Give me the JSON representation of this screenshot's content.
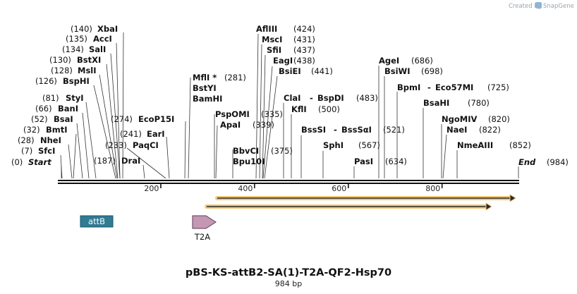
{
  "header": {
    "created_by": "Created by",
    "brand": "SnapGene"
  },
  "plasmid": {
    "name": "pBS-KS-attB2-SA(1)-T2A-QF2-Hsp70",
    "length": 984,
    "length_label": "984 bp"
  },
  "scale": {
    "ticks": [
      200,
      400,
      600,
      800
    ]
  },
  "sites": [
    {
      "label": "(0)",
      "name": "Start",
      "italic": true,
      "site": 0,
      "text_side": "left",
      "line": [
        87,
        253,
        87,
        236
      ]
    },
    {
      "label": "(7)",
      "name": "SfcI",
      "site": 7,
      "text_side": "left",
      "line": [
        88,
        253,
        86,
        220
      ]
    },
    {
      "label": "(28)",
      "name": "NheI",
      "site": 28,
      "text_side": "left",
      "line": [
        102,
        253,
        97,
        205
      ]
    },
    {
      "label": "(32)",
      "name": "BmtI",
      "site": 32,
      "text_side": "left",
      "line": [
        104,
        253,
        108,
        190
      ]
    },
    {
      "label": "(52)",
      "name": "BsaI",
      "site": 52,
      "text_side": "left",
      "line": [
        117,
        253,
        109,
        175
      ]
    },
    {
      "label": "(66)",
      "name": "BanI",
      "site": 66,
      "text_side": "left",
      "line": [
        126,
        253,
        117,
        160
      ]
    },
    {
      "label": "(81)",
      "name": "StyI",
      "site": 81,
      "text_side": "left",
      "line": [
        136,
        253,
        122,
        145
      ]
    },
    {
      "label": "(126)",
      "name": "BspHI",
      "site": 126,
      "text_side": "left",
      "line": [
        164,
        253,
        133,
        121
      ]
    },
    {
      "label": "(128)",
      "name": "MslI",
      "site": 128,
      "text_side": "left",
      "line": [
        166,
        253,
        141,
        106
      ]
    },
    {
      "label": "(130)",
      "name": "BstXI",
      "site": 130,
      "text_side": "left",
      "line": [
        167,
        253,
        151,
        91
      ]
    },
    {
      "label": "(134)",
      "name": "SalI",
      "site": 134,
      "text_side": "left",
      "line": [
        170,
        253,
        157,
        76
      ]
    },
    {
      "label": "(135)",
      "name": "AccI",
      "site": 135,
      "text_side": "left",
      "line": [
        170,
        253,
        165,
        61
      ]
    },
    {
      "label": "(140)",
      "name": "XbaI",
      "site": 140,
      "text_side": "left",
      "line": [
        174,
        253,
        175,
        46
      ]
    },
    {
      "label": "(187)",
      "name": "DraI",
      "site": 187,
      "text_side": "right",
      "line": [
        205,
        253,
        203,
        234
      ]
    },
    {
      "label": "(233)",
      "name": "PaqCI",
      "site": 233,
      "text_side": "right",
      "line": [
        235,
        253,
        180,
        210
      ]
    },
    {
      "label": "(241)",
      "name": "EarI",
      "site": 241,
      "text_side": "right",
      "line": [
        240,
        253,
        236,
        194
      ]
    },
    {
      "label": "(274)",
      "name": "EcoP15I",
      "site": 274,
      "text_side": "right",
      "line": [
        262,
        253,
        263,
        172
      ]
    },
    {
      "label": "(281)",
      "name": "MflI",
      "star": true,
      "site": 281,
      "text_side": "right",
      "line": [
        267,
        253,
        270,
        110
      ]
    },
    {
      "label": "",
      "name": "BstYI",
      "site": 281,
      "text_side": "right",
      "line": null
    },
    {
      "label": "",
      "name": "BamHI",
      "site": 281,
      "text_side": "right",
      "line": null
    },
    {
      "label": "(335)",
      "name": "PspOMI",
      "site": 335,
      "text_side": "right",
      "line": [
        304,
        253,
        304,
        162
      ]
    },
    {
      "label": "(339)",
      "name": "ApaI",
      "site": 339,
      "text_side": "right",
      "line": [
        306,
        253,
        308,
        178
      ]
    },
    {
      "label": "(375)",
      "name": "BbvCI",
      "site": 375,
      "text_side": "right",
      "line": [
        330,
        253,
        330,
        212
      ]
    },
    {
      "label": "",
      "name": "Bpu10I",
      "site": 375,
      "text_side": "right",
      "line": null
    },
    {
      "label": "(424)",
      "name": "AflIII",
      "site": 424,
      "text_side": "right",
      "line": [
        363,
        253,
        366,
        48
      ]
    },
    {
      "label": "(431)",
      "name": "MscI",
      "site": 431,
      "text_side": "right",
      "line": [
        368,
        253,
        371,
        63
      ]
    },
    {
      "label": "(437)",
      "name": "SfiI",
      "site": 437,
      "text_side": "right",
      "line": [
        372,
        253,
        376,
        78
      ]
    },
    {
      "label": "(438)",
      "name": "EagI",
      "site": 438,
      "text_side": "right",
      "line": [
        373,
        253,
        386,
        94
      ]
    },
    {
      "label": "(441)",
      "name": "BsiEI",
      "site": 441,
      "text_side": "right",
      "line": [
        375,
        253,
        393,
        108
      ]
    },
    {
      "label": "(483)",
      "name": "ClaI",
      "site": 483,
      "text_side": "right",
      "line": [
        402,
        253,
        402,
        146
      ]
    },
    {
      "label": "",
      "name": "BspDI",
      "site": 483,
      "text_side": "right",
      "line": null
    },
    {
      "label": "(500)",
      "name": "KflI",
      "site": 500,
      "text_side": "right",
      "line": [
        413,
        253,
        413,
        162
      ]
    },
    {
      "label": "(521)",
      "name": "BssSI",
      "site": 521,
      "text_side": "right",
      "line": [
        427,
        253,
        427,
        192
      ]
    },
    {
      "label": "",
      "name": "BssSαI",
      "site": 521,
      "text_side": "right",
      "line": null
    },
    {
      "label": "(567)",
      "name": "SphI",
      "site": 567,
      "text_side": "right",
      "line": [
        458,
        253,
        458,
        214
      ]
    },
    {
      "label": "(634)",
      "name": "PasI",
      "site": 634,
      "text_side": "right",
      "line": [
        502,
        253,
        502,
        236
      ]
    },
    {
      "label": "(686)",
      "name": "AgeI",
      "site": 686,
      "text_side": "right",
      "line": [
        537,
        253,
        537,
        93
      ]
    },
    {
      "label": "(698)",
      "name": "BsiWI",
      "site": 698,
      "text_side": "right",
      "line": [
        545,
        253,
        545,
        108
      ]
    },
    {
      "label": "(725)",
      "name": "BpmI",
      "site": 725,
      "text_side": "right",
      "line": [
        563,
        253,
        563,
        130
      ]
    },
    {
      "label": "",
      "name": "Eco57MI",
      "site": 725,
      "text_side": "right",
      "line": null
    },
    {
      "label": "(780)",
      "name": "BsaHI",
      "site": 780,
      "text_side": "right",
      "line": [
        600,
        253,
        600,
        153
      ]
    },
    {
      "label": "(820)",
      "name": "NgoMIV",
      "site": 820,
      "text_side": "right",
      "line": [
        626,
        253,
        626,
        176
      ]
    },
    {
      "label": "(822)",
      "name": "NaeI",
      "site": 822,
      "text_side": "right",
      "line": [
        628,
        253,
        633,
        191
      ]
    },
    {
      "label": "(852)",
      "name": "NmeAIII",
      "site": 852,
      "text_side": "right",
      "line": [
        648,
        253,
        648,
        213
      ]
    },
    {
      "label": "(984)",
      "name": "End",
      "italic": true,
      "site": 984,
      "text_side": "right",
      "line": [
        735,
        253,
        735,
        236
      ]
    }
  ],
  "features": [
    {
      "name": "attB",
      "type": "misc",
      "color": "#2f7c94",
      "label_color": "#ffffff"
    },
    {
      "name": "T2A",
      "type": "arrow",
      "color": "#c597b5",
      "label_color": "#222222"
    }
  ],
  "colors": {
    "orf_fill": "#f1c77a",
    "orf_line": "#2b2b2b"
  }
}
